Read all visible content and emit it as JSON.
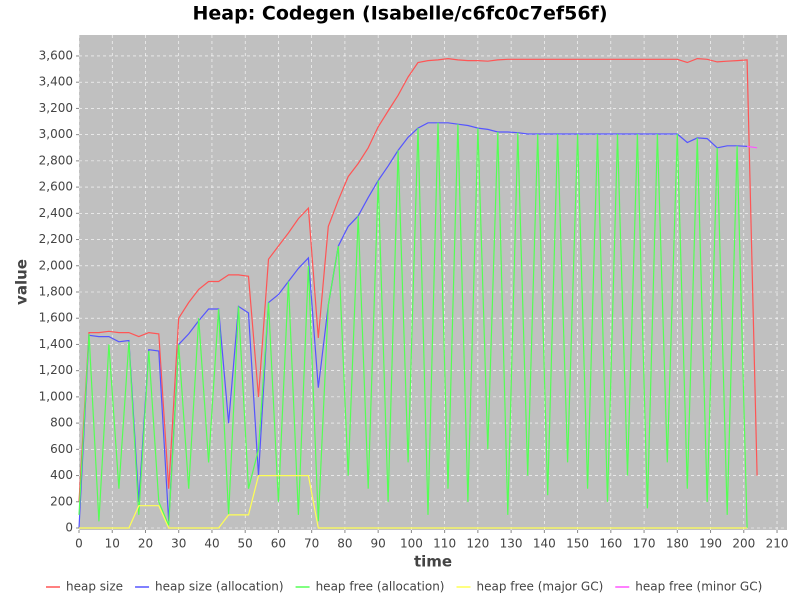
{
  "chart_data": {
    "type": "line",
    "title": "Heap: Codegen (Isabelle/c6fc0c7ef56f)",
    "x_label": "time",
    "y_label": "value",
    "grid": true,
    "x": [
      0,
      3,
      6,
      9,
      12,
      15,
      18,
      21,
      24,
      27,
      30,
      33,
      36,
      39,
      42,
      45,
      48,
      51,
      54,
      57,
      60,
      63,
      66,
      69,
      72,
      75,
      78,
      81,
      84,
      87,
      90,
      93,
      96,
      99,
      102,
      105,
      108,
      111,
      114,
      117,
      120,
      123,
      126,
      129,
      132,
      135,
      138,
      141,
      144,
      147,
      150,
      153,
      156,
      159,
      162,
      165,
      168,
      171,
      174,
      177,
      180,
      183,
      186,
      189,
      192,
      195,
      198,
      201,
      204
    ],
    "xlim": [
      0,
      213
    ],
    "ylim": [
      0,
      3760
    ],
    "xticks": [
      0,
      10,
      20,
      30,
      40,
      50,
      60,
      70,
      80,
      90,
      100,
      110,
      120,
      130,
      140,
      150,
      160,
      170,
      180,
      190,
      200,
      210
    ],
    "yticks": [
      0,
      200,
      400,
      600,
      800,
      {
        "value": 1000,
        "label": "1,000"
      },
      {
        "value": 1200,
        "label": "1,200"
      },
      {
        "value": 1400,
        "label": "1,400"
      },
      {
        "value": 1600,
        "label": "1,600"
      },
      {
        "value": 1800,
        "label": "1,800"
      },
      {
        "value": 2000,
        "label": "2,000"
      },
      {
        "value": 2200,
        "label": "2,200"
      },
      {
        "value": 2400,
        "label": "2,400"
      },
      {
        "value": 2600,
        "label": "2,600"
      },
      {
        "value": 2800,
        "label": "2,800"
      },
      {
        "value": 3000,
        "label": "3,000"
      },
      {
        "value": 3200,
        "label": "3,200"
      },
      {
        "value": 3400,
        "label": "3,400"
      },
      {
        "value": 3600,
        "label": "3,600"
      }
    ],
    "series": [
      {
        "name": "heap size",
        "color": "#ff5555",
        "values": [
          200,
          1490,
          1490,
          1500,
          1490,
          1490,
          1460,
          1490,
          1480,
          300,
          1600,
          1720,
          1820,
          1880,
          1880,
          1930,
          1930,
          1920,
          1000,
          2050,
          2150,
          2250,
          2360,
          2440,
          1450,
          2300,
          2500,
          2680,
          2780,
          2900,
          3060,
          3180,
          3300,
          3440,
          3550,
          3565,
          3570,
          3580,
          3570,
          3565,
          3565,
          3560,
          3570,
          3575,
          3575,
          3575,
          3575,
          3575,
          3575,
          3575,
          3575,
          3575,
          3575,
          3575,
          3575,
          3575,
          3575,
          3575,
          3575,
          3575,
          3575,
          3550,
          3580,
          3575,
          3555,
          3560,
          3565,
          3570,
          400
        ]
      },
      {
        "name": "heap size (allocation)",
        "color": "#5555ff",
        "values": [
          0,
          1470,
          1460,
          1460,
          1420,
          1430,
          200,
          1360,
          1350,
          50,
          1400,
          1480,
          1580,
          1670,
          1670,
          800,
          1690,
          1640,
          400,
          1720,
          1780,
          1880,
          1980,
          2060,
          1070,
          1700,
          2150,
          2300,
          2380,
          2520,
          2650,
          2760,
          2880,
          2980,
          3050,
          3090,
          3090,
          3090,
          3080,
          3070,
          3050,
          3040,
          3020,
          3020,
          3015,
          3005,
          3005,
          3005,
          3005,
          3005,
          3005,
          3005,
          3005,
          3005,
          3005,
          3005,
          3005,
          3005,
          3005,
          3005,
          3005,
          2940,
          2975,
          2970,
          2900,
          2915,
          2915,
          2910,
          null
        ]
      },
      {
        "name": "heap free (allocation)",
        "color": "#55ff55",
        "values": [
          100,
          1480,
          50,
          1400,
          300,
          1420,
          100,
          1350,
          200,
          20,
          1400,
          300,
          1600,
          500,
          1670,
          100,
          1690,
          300,
          600,
          1720,
          200,
          1880,
          100,
          2000,
          50,
          1700,
          2150,
          400,
          2380,
          300,
          2650,
          200,
          2880,
          500,
          3050,
          100,
          3090,
          300,
          3080,
          200,
          3050,
          600,
          3020,
          100,
          3015,
          400,
          3005,
          250,
          3005,
          500,
          3005,
          300,
          3005,
          200,
          3005,
          400,
          3005,
          150,
          3005,
          500,
          3005,
          300,
          2975,
          200,
          2900,
          100,
          2915,
          0,
          null
        ]
      },
      {
        "name": "heap free (major GC)",
        "color": "#ffff55",
        "values": [
          0,
          0,
          0,
          0,
          0,
          0,
          170,
          170,
          170,
          0,
          0,
          0,
          0,
          0,
          0,
          100,
          100,
          100,
          400,
          400,
          400,
          400,
          400,
          400,
          0,
          0,
          0,
          0,
          0,
          0,
          0,
          0,
          0,
          0,
          0,
          0,
          0,
          0,
          0,
          0,
          0,
          0,
          0,
          0,
          0,
          0,
          0,
          0,
          0,
          0,
          0,
          0,
          0,
          0,
          0,
          0,
          0,
          0,
          0,
          0,
          0,
          0,
          0,
          0,
          0,
          0,
          0,
          0,
          null
        ]
      },
      {
        "name": "heap free (minor GC)",
        "color": "#ff55ff",
        "values": [
          null,
          null,
          null,
          null,
          null,
          null,
          null,
          null,
          null,
          null,
          null,
          null,
          null,
          null,
          null,
          null,
          null,
          null,
          null,
          null,
          null,
          null,
          null,
          null,
          null,
          null,
          null,
          null,
          null,
          null,
          null,
          null,
          null,
          null,
          null,
          null,
          null,
          null,
          null,
          null,
          null,
          null,
          null,
          null,
          null,
          null,
          null,
          null,
          null,
          null,
          null,
          null,
          null,
          null,
          null,
          null,
          null,
          null,
          null,
          null,
          null,
          null,
          null,
          null,
          null,
          null,
          null,
          2910,
          2900
        ]
      }
    ]
  }
}
